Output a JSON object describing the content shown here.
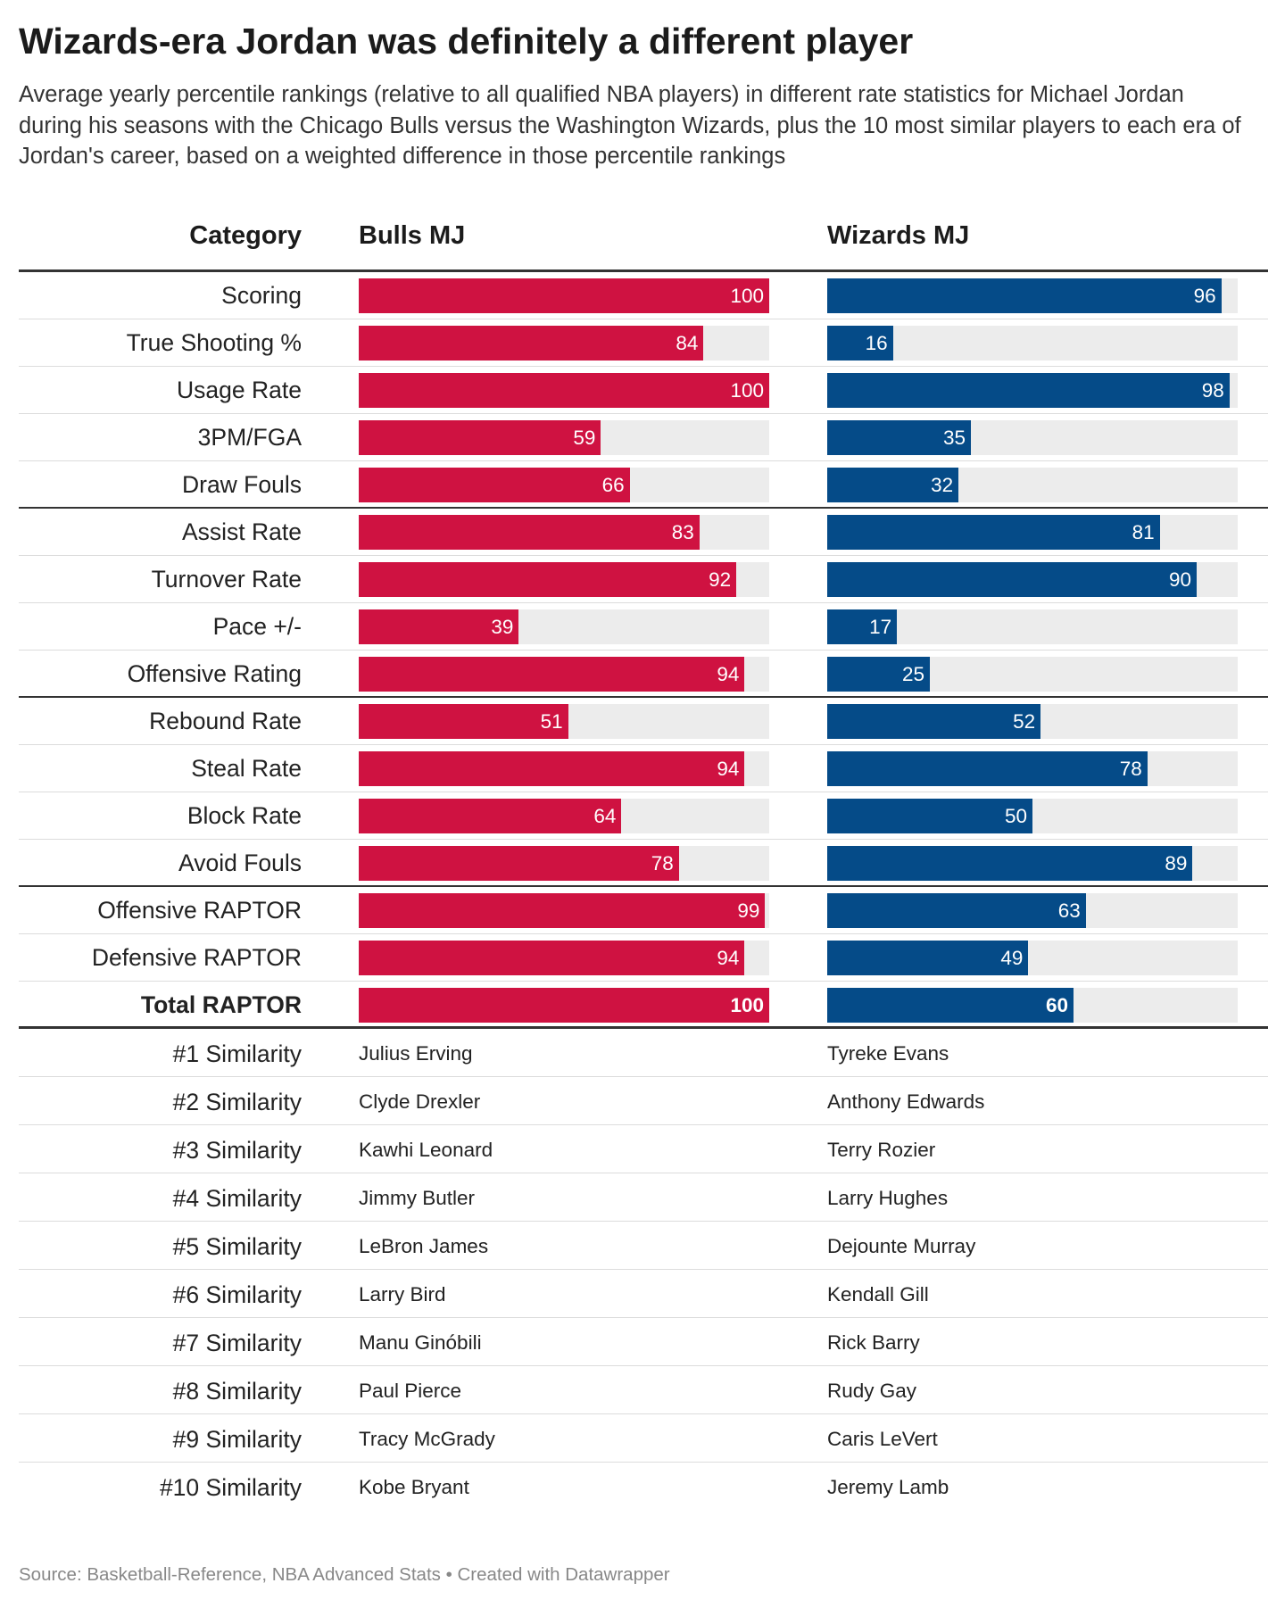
{
  "title": "Wizards-era Jordan was definitely a different player",
  "subtitle": "Average yearly percentile rankings (relative to all qualified NBA players) in different rate statistics for Michael Jordan during his seasons with the Chicago Bulls versus the Washington Wizards, plus the 10 most similar players to each era of Jordan's career, based on a weighted difference in those percentile rankings",
  "columns": {
    "category": "Category",
    "bulls": "Bulls MJ",
    "wizards": "Wizards MJ"
  },
  "colors": {
    "bulls": "#cf1241",
    "wizards": "#054b88",
    "track": "#ececec"
  },
  "chart_data": {
    "type": "bar",
    "scale": [
      0,
      100
    ],
    "categories": [
      "Scoring",
      "True Shooting %",
      "Usage Rate",
      "3PM/FGA",
      "Draw Fouls",
      "Assist Rate",
      "Turnover Rate",
      "Pace +/-",
      "Offensive Rating",
      "Rebound Rate",
      "Steal Rate",
      "Block Rate",
      "Avoid Fouls",
      "Offensive RAPTOR",
      "Defensive RAPTOR",
      "Total RAPTOR"
    ],
    "series": [
      {
        "name": "Bulls MJ",
        "values": [
          100,
          84,
          100,
          59,
          66,
          83,
          92,
          39,
          94,
          51,
          94,
          64,
          78,
          99,
          94,
          100
        ]
      },
      {
        "name": "Wizards MJ",
        "values": [
          96,
          16,
          98,
          35,
          32,
          81,
          90,
          17,
          25,
          52,
          78,
          50,
          89,
          63,
          49,
          60
        ]
      }
    ],
    "group_ends": [
      4,
      8,
      12
    ],
    "bold_rows": [
      15
    ]
  },
  "similarity": [
    {
      "label": "#1 Similarity",
      "bulls": "Julius Erving",
      "wizards": "Tyreke Evans"
    },
    {
      "label": "#2 Similarity",
      "bulls": "Clyde Drexler",
      "wizards": "Anthony Edwards"
    },
    {
      "label": "#3 Similarity",
      "bulls": "Kawhi Leonard",
      "wizards": "Terry Rozier"
    },
    {
      "label": "#4 Similarity",
      "bulls": "Jimmy Butler",
      "wizards": "Larry Hughes"
    },
    {
      "label": "#5 Similarity",
      "bulls": "LeBron James",
      "wizards": "Dejounte Murray"
    },
    {
      "label": "#6 Similarity",
      "bulls": "Larry Bird",
      "wizards": "Kendall Gill"
    },
    {
      "label": "#7 Similarity",
      "bulls": "Manu Ginóbili",
      "wizards": "Rick Barry"
    },
    {
      "label": "#8 Similarity",
      "bulls": "Paul Pierce",
      "wizards": "Rudy Gay"
    },
    {
      "label": "#9 Similarity",
      "bulls": "Tracy McGrady",
      "wizards": "Caris LeVert"
    },
    {
      "label": "#10 Similarity",
      "bulls": "Kobe Bryant",
      "wizards": "Jeremy Lamb"
    }
  ],
  "footer": "Source: Basketball-Reference, NBA Advanced Stats • Created with Datawrapper"
}
